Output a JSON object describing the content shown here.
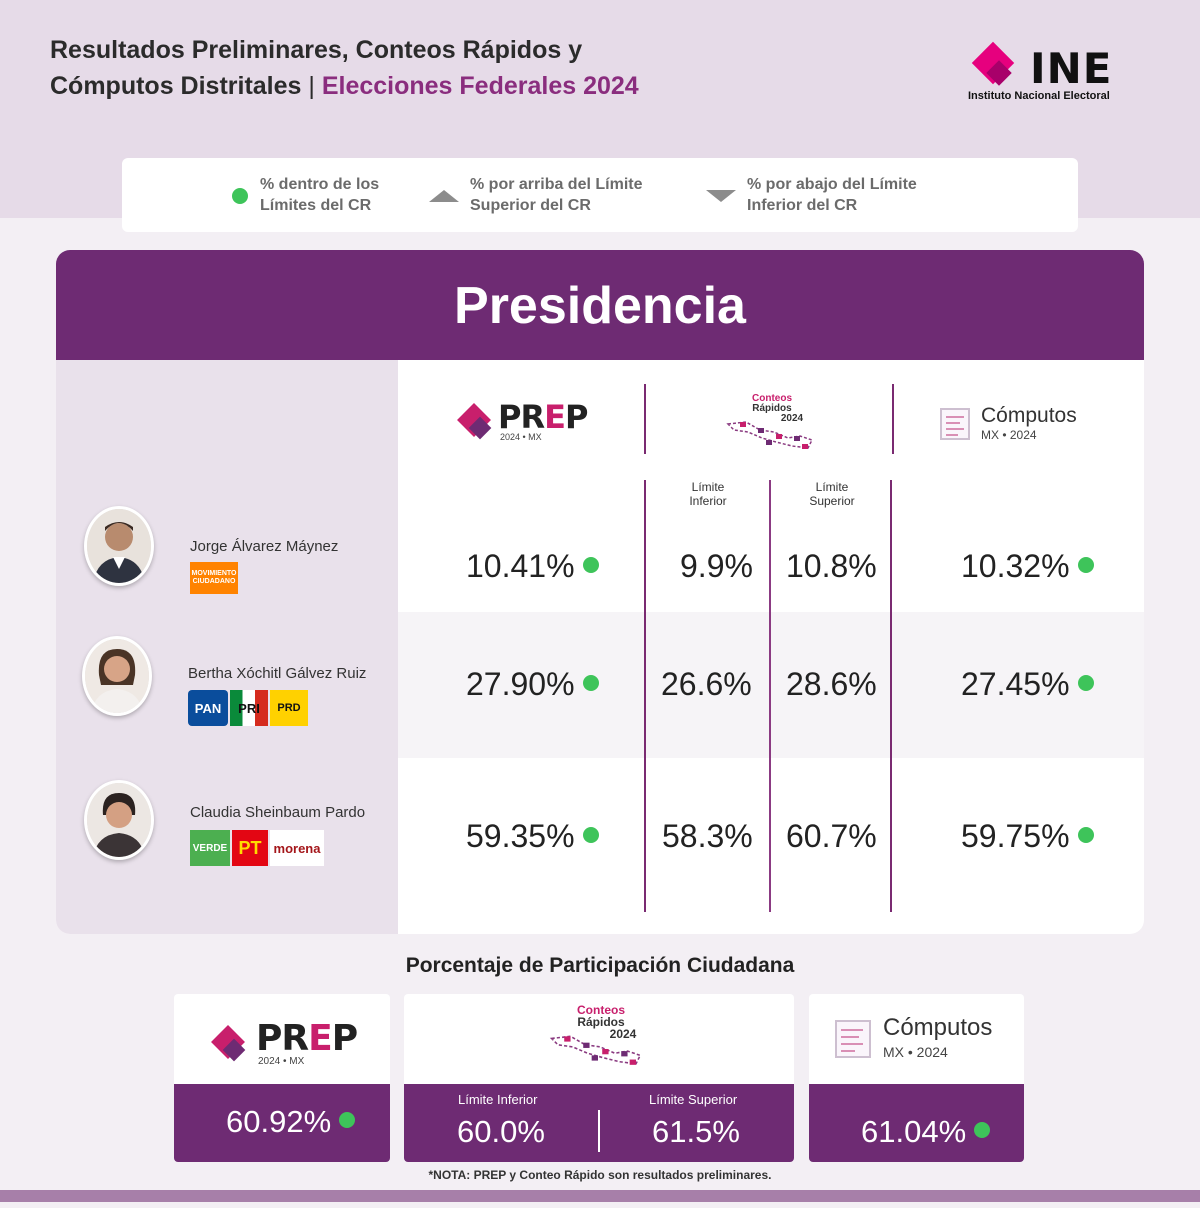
{
  "header": {
    "title_line1": "Resultados Preliminares, Conteos Rápidos y",
    "title_line2": "Cómputos Distritales",
    "separator": " | ",
    "title_accent": "Elecciones Federales 2024"
  },
  "ine_logo": {
    "text": "INE",
    "subtitle": "Instituto Nacional Electoral"
  },
  "legend": {
    "inside": [
      "% dentro de los",
      "Límites del CR"
    ],
    "above": [
      "% por arriba del Límite",
      "Superior del CR"
    ],
    "below": [
      "% por abajo del Límite",
      "Inferior del CR"
    ]
  },
  "section_title": "Presidencia",
  "prep_logo": {
    "p": "PR",
    "e": "E",
    "p2": "P",
    "sub": "2024 • MX"
  },
  "conteos_logo": {
    "line1": "Conteos",
    "line2": "Rápidos",
    "line3": "2024"
  },
  "computos_logo": {
    "title": "Cómputos",
    "sub": "MX • 2024"
  },
  "limits": {
    "inferior": [
      "Límite",
      "Inferior"
    ],
    "superior": [
      "Límite",
      "Superior"
    ]
  },
  "candidates": [
    {
      "name": "Jorge Álvarez Máynez",
      "parties": [
        "MOVIMIENTO CIUDADANO"
      ],
      "prep": "10.41%",
      "cr_low": "9.9%",
      "cr_high": "10.8%",
      "computos": "10.32%"
    },
    {
      "name": "Bertha Xóchitl Gálvez Ruiz",
      "parties": [
        "PAN",
        "PRI",
        "PRD"
      ],
      "prep": "27.90%",
      "cr_low": "26.6%",
      "cr_high": "28.6%",
      "computos": "27.45%"
    },
    {
      "name": "Claudia Sheinbaum Pardo",
      "parties": [
        "VERDE",
        "PT",
        "morena"
      ],
      "prep": "59.35%",
      "cr_low": "58.3%",
      "cr_high": "60.7%",
      "computos": "59.75%"
    }
  ],
  "participation": {
    "title": "Porcentaje de Participación Ciudadana",
    "prep": "60.92%",
    "cr_low_label": "Límite Inferior",
    "cr_high_label": "Límite Superior",
    "cr_low": "60.0%",
    "cr_high": "61.5%",
    "computos": "61.04%"
  },
  "note": "*NOTA: PREP y Conteo Rápido son resultados preliminares.",
  "colors": {
    "accent": "#6e2b73",
    "magenta": "#c81f6c",
    "within_dot": "#3ec45a"
  }
}
